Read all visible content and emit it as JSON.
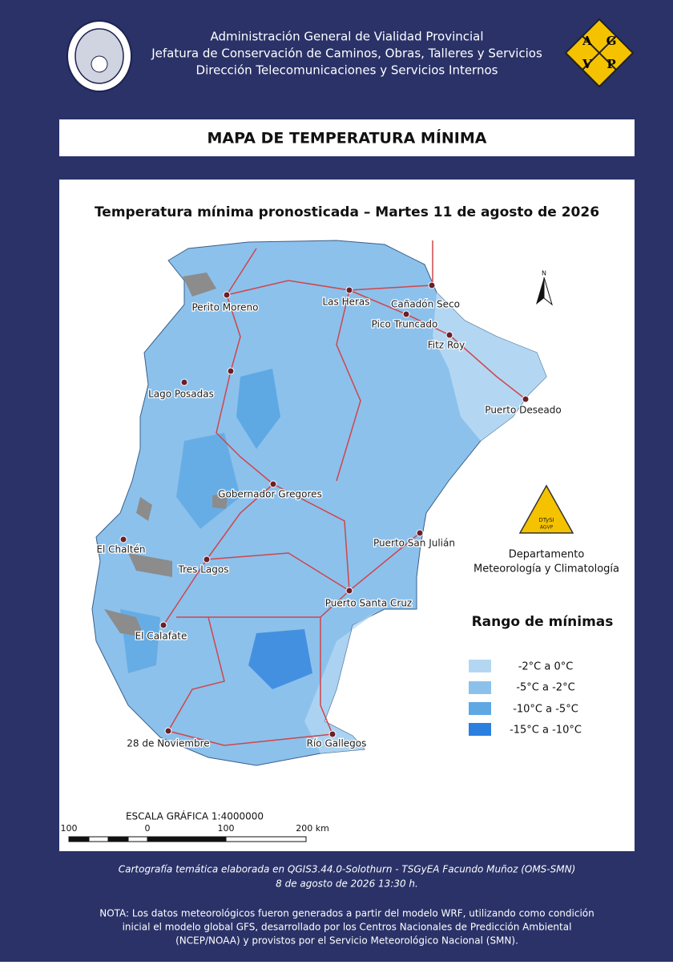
{
  "header": {
    "lines": [
      "Administración General de Vialidad Provincial",
      "Jefatura de Conservación de Caminos, Obras, Talleres y Servicios",
      "Dirección Telecomunicaciones y Servicios Internos"
    ],
    "logo_letters": [
      "A",
      "G",
      "V",
      "P"
    ]
  },
  "title": "MAPA DE TEMPERATURA MÍNIMA",
  "map": {
    "subtitle": "Temperatura mínima pronosticada – Martes 11 de agosto de 2026",
    "north": "N",
    "places": [
      "Perito Moreno",
      "Las Heras",
      "Cañadón Seco",
      "Pico Truncado",
      "Fitz Roy",
      "Lago Posadas",
      "Puerto Deseado",
      "Gobernador Gregores",
      "El Chaltén",
      "Puerto San Julián",
      "Tres Lagos",
      "Puerto Santa Cruz",
      "El Calafate",
      "28 de Noviembre",
      "Río Gallegos"
    ],
    "department": {
      "logo_top": "DTySI",
      "logo_bottom": "AGVP",
      "lines": [
        "Departamento",
        "Meteorología y Climatología"
      ]
    },
    "legend": {
      "title": "Rango de mínimas",
      "items": [
        "-2°C a 0°C",
        "-5°C a -2°C",
        "-10°C a -5°C",
        "-15°C a -10°C"
      ]
    },
    "scale": {
      "title": "ESCALA GRÁFICA 1:4000000",
      "labels": [
        "100",
        "0",
        "100",
        "200 km"
      ]
    }
  },
  "footer": {
    "credits": [
      "Cartografía temática elaborada en QGIS3.44.0-Solothurn - TSGyEA Facundo Muñoz (OMS-SMN)",
      "8 de agosto de 2026 13:30 h."
    ],
    "note": [
      "NOTA: Los datos meteorológicos fueron generados a partir del modelo WRF, utilizando como condición",
      "inicial el modelo global GFS, desarrollado por los Centros Nacionales de Predicción Ambiental",
      "(NCEP/NOAA) y provistos por el Servicio Meteorológico Nacional (SMN)."
    ]
  }
}
